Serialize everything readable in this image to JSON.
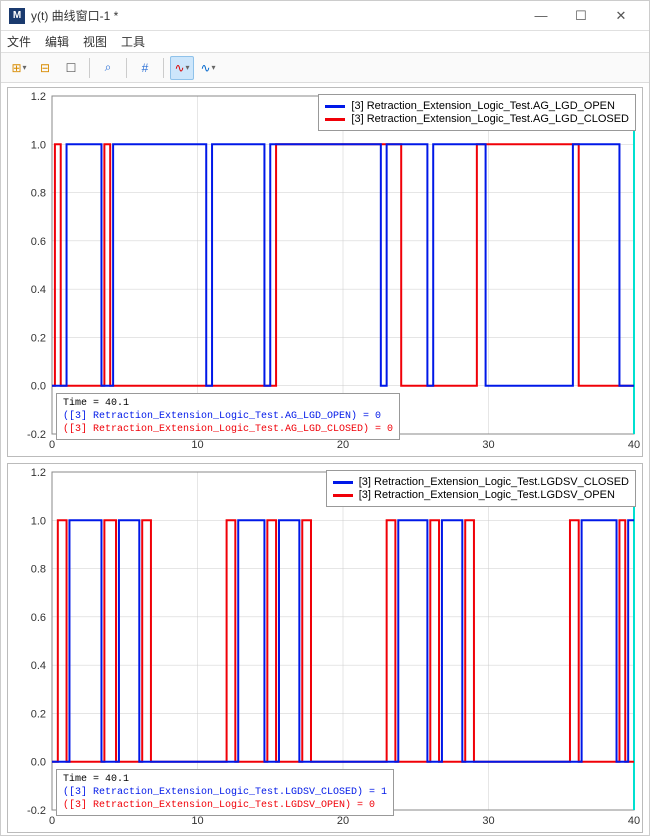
{
  "window": {
    "icon_text": "M",
    "title": "y(t) 曲线窗口-1 *",
    "min": "—",
    "max": "☐",
    "close": "✕"
  },
  "menu": {
    "file": "文件",
    "edit": "编辑",
    "view": "视图",
    "tools": "工具"
  },
  "toolbar_icons": {
    "grid1": "⊞",
    "grid2": "⊟",
    "crop": "☐",
    "zoom": "⌕",
    "hash": "#",
    "wave1": "∿",
    "wave2": "∿"
  },
  "colors": {
    "blue": "#0018e8",
    "red": "#f00008",
    "cursorline": "#00e0d0",
    "grid": "#cccccc",
    "axis": "#888888",
    "bg": "#ffffff",
    "text": "#333333"
  },
  "chart_common": {
    "xlim": [
      0,
      40
    ],
    "ylim": [
      -0.2,
      1.2
    ],
    "xticks": [
      0,
      10,
      20,
      30,
      40
    ],
    "yticks": [
      -0.2,
      0.0,
      0.2,
      0.4,
      0.6,
      0.8,
      1.0,
      1.2
    ],
    "line_width": 2,
    "tick_fontsize": 11,
    "cursor_x": 40
  },
  "chart1": {
    "legend_blue": "[3] Retraction_Extension_Logic_Test.AG_LGD_OPEN",
    "legend_red": "[3] Retraction_Extension_Logic_Test.AG_LGD_CLOSED",
    "info_time": "Time = 40.1",
    "info_blue": "([3] Retraction_Extension_Logic_Test.AG_LGD_OPEN) = 0",
    "info_red": "([3] Retraction_Extension_Logic_Test.AG_LGD_CLOSED) = 0",
    "blue_edges": [
      [
        0,
        0
      ],
      [
        0.4,
        0
      ],
      [
        0.4,
        0
      ],
      [
        1.2,
        0
      ],
      [
        1.2,
        1
      ],
      [
        3.2,
        1
      ],
      [
        3.2,
        0
      ],
      [
        4.4,
        0
      ],
      [
        4.4,
        1
      ],
      [
        10.4,
        1
      ],
      [
        10.4,
        0
      ],
      [
        11.2,
        0
      ],
      [
        11.2,
        1
      ],
      [
        14.4,
        1
      ],
      [
        14.4,
        0
      ],
      [
        15.2,
        0
      ],
      [
        15.2,
        1
      ],
      [
        22.4,
        1
      ],
      [
        22.4,
        0
      ],
      [
        23.2,
        0
      ],
      [
        23.2,
        1
      ],
      [
        25.6,
        1
      ],
      [
        25.6,
        0
      ],
      [
        26.4,
        0
      ],
      [
        26.4,
        1
      ],
      [
        29.6,
        1
      ],
      [
        29.6,
        0
      ],
      [
        36.0,
        0
      ],
      [
        36.0,
        1
      ],
      [
        38.8,
        1
      ],
      [
        38.8,
        0
      ],
      [
        40,
        0
      ]
    ],
    "red_edges": [
      [
        0,
        0
      ],
      [
        0.2,
        0
      ],
      [
        0.2,
        1
      ],
      [
        0.6,
        1
      ],
      [
        0.6,
        0
      ],
      [
        3.0,
        0
      ],
      [
        3.0,
        0
      ],
      [
        3.6,
        0
      ],
      [
        3.6,
        1
      ],
      [
        4.0,
        1
      ],
      [
        4.0,
        0
      ],
      [
        10.2,
        0
      ],
      [
        10.2,
        0
      ],
      [
        10.8,
        0
      ],
      [
        10.8,
        0
      ],
      [
        14.2,
        0
      ],
      [
        14.2,
        0
      ],
      [
        14.8,
        0
      ],
      [
        14.8,
        0
      ],
      [
        15.0,
        0
      ],
      [
        15.0,
        0
      ],
      [
        15.6,
        0
      ],
      [
        15.6,
        1
      ],
      [
        24.0,
        1
      ],
      [
        24.0,
        0
      ],
      [
        26.0,
        0
      ],
      [
        26.0,
        0
      ],
      [
        29.4,
        0
      ],
      [
        29.4,
        1
      ],
      [
        36.0,
        1
      ],
      [
        36.0,
        0
      ],
      [
        40,
        0
      ]
    ],
    "blue_step": [
      [
        0,
        0
      ],
      [
        1.0,
        0
      ],
      [
        1.0,
        1
      ],
      [
        3.4,
        1
      ],
      [
        3.4,
        0
      ],
      [
        4.2,
        0
      ],
      [
        4.2,
        1
      ],
      [
        10.6,
        1
      ],
      [
        10.6,
        0
      ],
      [
        11.0,
        0
      ],
      [
        11.0,
        1
      ],
      [
        14.6,
        1
      ],
      [
        14.6,
        0
      ],
      [
        15.0,
        0
      ],
      [
        15.0,
        1
      ],
      [
        22.6,
        1
      ],
      [
        22.6,
        0
      ],
      [
        23.0,
        0
      ],
      [
        23.0,
        1
      ],
      [
        25.8,
        1
      ],
      [
        25.8,
        0
      ],
      [
        26.2,
        0
      ],
      [
        26.2,
        1
      ],
      [
        29.8,
        1
      ],
      [
        29.8,
        0
      ],
      [
        35.8,
        0
      ],
      [
        35.8,
        1
      ],
      [
        39.0,
        1
      ],
      [
        39.0,
        0
      ],
      [
        40,
        0
      ]
    ],
    "red_step": [
      [
        0,
        0
      ],
      [
        0.2,
        0
      ],
      [
        0.2,
        1
      ],
      [
        0.6,
        1
      ],
      [
        0.6,
        0
      ],
      [
        3.6,
        0
      ],
      [
        3.6,
        1
      ],
      [
        4.0,
        1
      ],
      [
        4.0,
        0
      ],
      [
        15.4,
        0
      ],
      [
        15.4,
        1
      ],
      [
        24.0,
        1
      ],
      [
        24.0,
        0
      ],
      [
        29.2,
        0
      ],
      [
        29.2,
        1
      ],
      [
        36.2,
        1
      ],
      [
        36.2,
        0
      ],
      [
        40,
        0
      ]
    ]
  },
  "chart2": {
    "legend_blue": "[3] Retraction_Extension_Logic_Test.LGDSV_CLOSED",
    "legend_red": "[3] Retraction_Extension_Logic_Test.LGDSV_OPEN",
    "info_time": "Time = 40.1",
    "info_blue": "([3] Retraction_Extension_Logic_Test.LGDSV_CLOSED) = 1",
    "info_red": "([3] Retraction_Extension_Logic_Test.LGDSV_OPEN) = 0",
    "blue_step": [
      [
        0,
        0
      ],
      [
        1.2,
        0
      ],
      [
        1.2,
        1
      ],
      [
        3.4,
        1
      ],
      [
        3.4,
        0
      ],
      [
        4.6,
        0
      ],
      [
        4.6,
        1
      ],
      [
        6.0,
        1
      ],
      [
        6.0,
        0
      ],
      [
        12.8,
        0
      ],
      [
        12.8,
        1
      ],
      [
        14.6,
        1
      ],
      [
        14.6,
        0
      ],
      [
        15.6,
        0
      ],
      [
        15.6,
        1
      ],
      [
        17.0,
        1
      ],
      [
        17.0,
        0
      ],
      [
        23.8,
        0
      ],
      [
        23.8,
        1
      ],
      [
        25.8,
        1
      ],
      [
        25.8,
        0
      ],
      [
        26.8,
        0
      ],
      [
        26.8,
        1
      ],
      [
        28.2,
        1
      ],
      [
        28.2,
        0
      ],
      [
        36.4,
        0
      ],
      [
        36.4,
        1
      ],
      [
        38.8,
        1
      ],
      [
        38.8,
        0
      ],
      [
        39.6,
        0
      ],
      [
        39.6,
        1
      ],
      [
        40,
        1
      ]
    ],
    "red_step": [
      [
        0,
        0
      ],
      [
        0.4,
        0
      ],
      [
        0.4,
        1
      ],
      [
        1.0,
        1
      ],
      [
        1.0,
        0
      ],
      [
        3.6,
        0
      ],
      [
        3.6,
        1
      ],
      [
        4.4,
        1
      ],
      [
        4.4,
        0
      ],
      [
        6.2,
        0
      ],
      [
        6.2,
        1
      ],
      [
        6.8,
        1
      ],
      [
        6.8,
        0
      ],
      [
        12.0,
        0
      ],
      [
        12.0,
        1
      ],
      [
        12.6,
        1
      ],
      [
        12.6,
        0
      ],
      [
        14.8,
        0
      ],
      [
        14.8,
        1
      ],
      [
        15.4,
        1
      ],
      [
        15.4,
        0
      ],
      [
        17.2,
        0
      ],
      [
        17.2,
        1
      ],
      [
        17.8,
        1
      ],
      [
        17.8,
        0
      ],
      [
        23.0,
        0
      ],
      [
        23.0,
        1
      ],
      [
        23.6,
        1
      ],
      [
        23.6,
        0
      ],
      [
        26.0,
        0
      ],
      [
        26.0,
        1
      ],
      [
        26.6,
        1
      ],
      [
        26.6,
        0
      ],
      [
        28.4,
        0
      ],
      [
        28.4,
        1
      ],
      [
        29.0,
        1
      ],
      [
        29.0,
        0
      ],
      [
        35.6,
        0
      ],
      [
        35.6,
        1
      ],
      [
        36.2,
        1
      ],
      [
        36.2,
        0
      ],
      [
        39.0,
        0
      ],
      [
        39.0,
        1
      ],
      [
        39.4,
        1
      ],
      [
        39.4,
        0
      ],
      [
        40,
        0
      ]
    ]
  }
}
